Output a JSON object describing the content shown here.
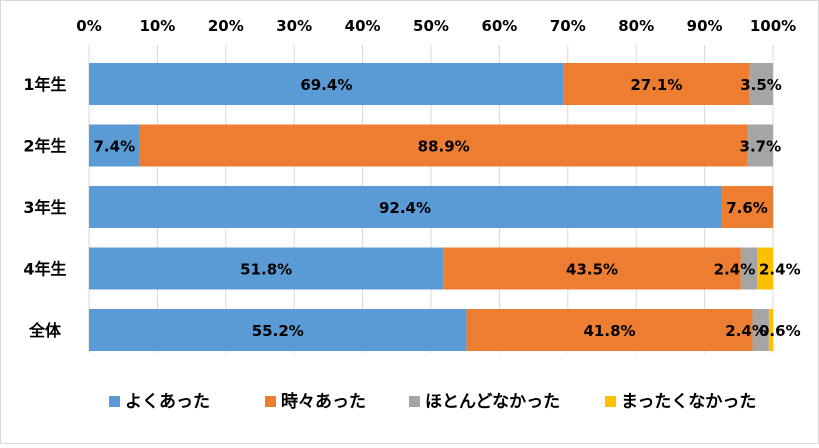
{
  "chart_data": {
    "type": "bar",
    "orientation": "horizontal",
    "stacked": "percent",
    "categories": [
      "1年生",
      "2年生",
      "3年生",
      "4年生",
      "全体"
    ],
    "series": [
      {
        "name": "よくあった",
        "color": "#5b9bd5",
        "values": [
          69.4,
          7.4,
          92.4,
          51.8,
          55.2
        ],
        "labels": [
          "69.4%",
          "7.4%",
          "92.4%",
          "51.8%",
          "55.2%"
        ]
      },
      {
        "name": "時々あった",
        "color": "#ed7d31",
        "values": [
          27.1,
          88.9,
          7.6,
          43.5,
          41.8
        ],
        "labels": [
          "27.1%",
          "88.9%",
          "7.6%",
          "43.5%",
          "41.8%"
        ]
      },
      {
        "name": "ほとんどなかった",
        "color": "#a5a5a5",
        "values": [
          3.5,
          3.7,
          0,
          2.4,
          2.4
        ],
        "labels": [
          "3.5%",
          "3.7%",
          "",
          "2.4%",
          "2.4%"
        ]
      },
      {
        "name": "まったくなかった",
        "color": "#ffc000",
        "values": [
          0,
          0,
          0,
          2.4,
          0.6
        ],
        "labels": [
          "",
          "",
          "",
          "2.4%",
          "0.6%"
        ]
      }
    ],
    "xlim": [
      0,
      100
    ],
    "xticks": [
      "0%",
      "10%",
      "20%",
      "30%",
      "40%",
      "50%",
      "60%",
      "70%",
      "80%",
      "90%",
      "100%"
    ],
    "x_axis_position": "top",
    "grid": true,
    "legend": "bottom"
  }
}
